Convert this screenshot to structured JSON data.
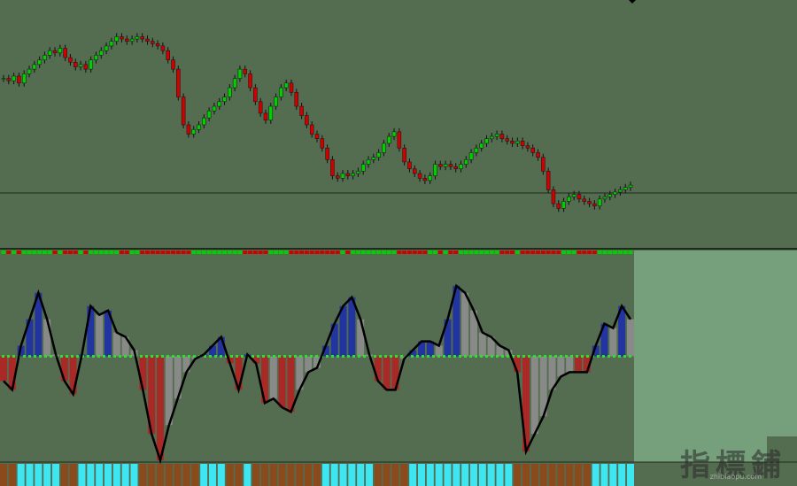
{
  "chart_data": {
    "type": "candlestick",
    "price": {
      "values": [
        70,
        69,
        71,
        68,
        72,
        74,
        76,
        78,
        80,
        82,
        81,
        83,
        79,
        77,
        75,
        76,
        74,
        78,
        80,
        82,
        84,
        86,
        88,
        87,
        86,
        87,
        88,
        87,
        86,
        85,
        84,
        82,
        78,
        74,
        62,
        50,
        46,
        48,
        50,
        53,
        56,
        58,
        60,
        62,
        66,
        70,
        74,
        72,
        66,
        60,
        55,
        52,
        58,
        62,
        66,
        68,
        64,
        58,
        54,
        50,
        46,
        44,
        40,
        35,
        28,
        27,
        29,
        28,
        29,
        30,
        33,
        35,
        36,
        38,
        42,
        45,
        47,
        40,
        34,
        31,
        29,
        27,
        26,
        28,
        33,
        32,
        33,
        32,
        31,
        33,
        35,
        38,
        40,
        42,
        44,
        45,
        46,
        44,
        43,
        42,
        43,
        41,
        40,
        38,
        36,
        30,
        22,
        16,
        14,
        17,
        19,
        20,
        18,
        17,
        16,
        15,
        18,
        19,
        20,
        21,
        22,
        23,
        24
      ],
      "ylim": [
        0,
        100
      ],
      "up_color": "#00d000",
      "down_color": "#d00000"
    },
    "oscillator": {
      "values": [
        -28,
        -38,
        12,
        42,
        72,
        42,
        2,
        -28,
        -43,
        2,
        57,
        47,
        52,
        27,
        22,
        7,
        -38,
        -88,
        -118,
        -78,
        -48,
        -18,
        -3,
        2,
        12,
        22,
        -8,
        -38,
        2,
        -8,
        -53,
        -48,
        -58,
        -63,
        -38,
        -18,
        -13,
        12,
        37,
        57,
        67,
        42,
        2,
        -28,
        -38,
        -38,
        -3,
        7,
        17,
        17,
        12,
        42,
        80,
        72,
        52,
        27,
        22,
        12,
        7,
        -18,
        -108,
        -88,
        -68,
        -38,
        -23,
        -18,
        -18,
        -18,
        12,
        37,
        32,
        57,
        42
      ],
      "ylim": [
        -120,
        120
      ],
      "pos_color": "#1c2fa8",
      "neg_color": "#b32222",
      "turn_color": "#8e8e8e",
      "line_color": "#000000"
    },
    "strip_colors": {
      "up": "#3ee6f2",
      "down": "#8a4a1c"
    }
  },
  "watermark": {
    "title": "指標鋪",
    "url": "zhibiaopu.com"
  }
}
